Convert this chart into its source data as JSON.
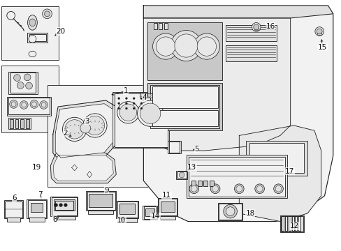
{
  "background_color": "#ffffff",
  "line_color": "#1a1a1a",
  "fill_light": "#f0f0f0",
  "fill_mid": "#e0e0e0",
  "fill_dark": "#c8c8c8",
  "text_color": "#111111",
  "label_fontsize": 7.5,
  "leader_lw": 0.55,
  "part_lw": 0.6,
  "labels": [
    {
      "num": "1",
      "xf": 0.368,
      "yf": 0.362
    },
    {
      "num": "2",
      "xf": 0.192,
      "yf": 0.53
    },
    {
      "num": "3",
      "xf": 0.255,
      "yf": 0.482
    },
    {
      "num": "4",
      "xf": 0.422,
      "yf": 0.39
    },
    {
      "num": "5",
      "xf": 0.576,
      "yf": 0.595
    },
    {
      "num": "6",
      "xf": 0.042,
      "yf": 0.79
    },
    {
      "num": "7",
      "xf": 0.118,
      "yf": 0.775
    },
    {
      "num": "8",
      "xf": 0.16,
      "yf": 0.875
    },
    {
      "num": "9",
      "xf": 0.312,
      "yf": 0.758
    },
    {
      "num": "10",
      "xf": 0.355,
      "yf": 0.878
    },
    {
      "num": "11",
      "xf": 0.488,
      "yf": 0.778
    },
    {
      "num": "12",
      "xf": 0.862,
      "yf": 0.9
    },
    {
      "num": "13",
      "xf": 0.562,
      "yf": 0.668
    },
    {
      "num": "14",
      "xf": 0.455,
      "yf": 0.862
    },
    {
      "num": "15",
      "xf": 0.944,
      "yf": 0.188
    },
    {
      "num": "16",
      "xf": 0.792,
      "yf": 0.105
    },
    {
      "num": "17",
      "xf": 0.848,
      "yf": 0.682
    },
    {
      "num": "18",
      "xf": 0.732,
      "yf": 0.85
    },
    {
      "num": "19",
      "xf": 0.108,
      "yf": 0.668
    },
    {
      "num": "20",
      "xf": 0.178,
      "yf": 0.125
    }
  ],
  "leaders": [
    {
      "from": [
        0.368,
        0.362
      ],
      "to": [
        0.31,
        0.382
      ]
    },
    {
      "from": [
        0.192,
        0.53
      ],
      "to": [
        0.21,
        0.56
      ]
    },
    {
      "from": [
        0.255,
        0.482
      ],
      "to": [
        0.268,
        0.505
      ]
    },
    {
      "from": [
        0.422,
        0.39
      ],
      "to": [
        0.415,
        0.415
      ]
    },
    {
      "from": [
        0.576,
        0.595
      ],
      "to": [
        0.56,
        0.6
      ]
    },
    {
      "from": [
        0.042,
        0.79
      ],
      "to": [
        0.052,
        0.808
      ]
    },
    {
      "from": [
        0.118,
        0.775
      ],
      "to": [
        0.125,
        0.798
      ]
    },
    {
      "from": [
        0.16,
        0.875
      ],
      "to": [
        0.178,
        0.862
      ]
    },
    {
      "from": [
        0.312,
        0.758
      ],
      "to": [
        0.308,
        0.778
      ]
    },
    {
      "from": [
        0.355,
        0.878
      ],
      "to": [
        0.368,
        0.868
      ]
    },
    {
      "from": [
        0.488,
        0.778
      ],
      "to": [
        0.49,
        0.798
      ]
    },
    {
      "from": [
        0.862,
        0.9
      ],
      "to": [
        0.858,
        0.882
      ]
    },
    {
      "from": [
        0.562,
        0.668
      ],
      "to": [
        0.548,
        0.68
      ]
    },
    {
      "from": [
        0.455,
        0.862
      ],
      "to": [
        0.45,
        0.875
      ]
    },
    {
      "from": [
        0.944,
        0.188
      ],
      "to": [
        0.935,
        0.155
      ]
    },
    {
      "from": [
        0.792,
        0.105
      ],
      "to": [
        0.768,
        0.112
      ]
    },
    {
      "from": [
        0.848,
        0.682
      ],
      "to": [
        0.835,
        0.69
      ]
    },
    {
      "from": [
        0.732,
        0.85
      ],
      "to": [
        0.72,
        0.848
      ]
    },
    {
      "from": [
        0.108,
        0.668
      ],
      "to": [
        0.09,
        0.64
      ]
    },
    {
      "from": [
        0.178,
        0.125
      ],
      "to": [
        0.155,
        0.145
      ]
    }
  ]
}
